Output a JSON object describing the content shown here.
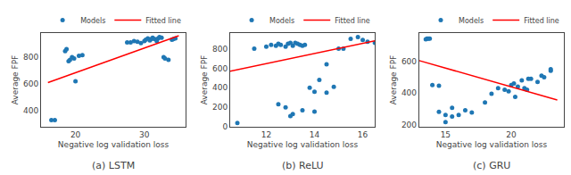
{
  "chart_data": [
    {
      "type": "scatter",
      "title": "(a) LSTM",
      "xlabel": "Negative log validation loss",
      "ylabel": "Average FPF",
      "series": [
        {
          "name": "Models",
          "type": "scatter",
          "color": "#1f77b4",
          "x": [
            16.5,
            17.0,
            18.5,
            18.7,
            19.0,
            19.2,
            19.5,
            19.8,
            20.0,
            20.5,
            21.0,
            27.5,
            28.0,
            28.5,
            29.0,
            29.5,
            30.0,
            30.2,
            30.5,
            30.8,
            31.0,
            31.2,
            31.5,
            31.8,
            32.0,
            32.2,
            32.5,
            32.8,
            33.0,
            33.5,
            34.0,
            34.2,
            34.5
          ],
          "values": [
            330,
            330,
            845,
            860,
            770,
            780,
            800,
            790,
            620,
            810,
            815,
            910,
            910,
            920,
            915,
            905,
            920,
            930,
            940,
            925,
            935,
            945,
            935,
            920,
            940,
            950,
            945,
            800,
            790,
            780,
            930,
            935,
            940
          ]
        },
        {
          "name": "Fitted line",
          "type": "line",
          "color": "red",
          "x": [
            16.0,
            35.0
          ],
          "values": [
            610,
            960
          ]
        }
      ],
      "xlim": [
        15,
        36
      ],
      "ylim": [
        280,
        980
      ],
      "xticks": [
        20,
        30
      ],
      "yticks": [
        400,
        600,
        800
      ],
      "grid": false,
      "legend": "top"
    },
    {
      "type": "scatter",
      "title": "(b) ReLU",
      "xlabel": "Negative log validation loss",
      "ylabel": "Average FPF",
      "series": [
        {
          "name": "Models",
          "type": "scatter",
          "color": "#1f77b4",
          "x": [
            10.8,
            11.5,
            12.0,
            12.2,
            12.4,
            12.5,
            12.6,
            12.8,
            12.9,
            13.0,
            13.1,
            13.2,
            13.3,
            13.4,
            13.5,
            13.6,
            13.8,
            14.0,
            14.2,
            14.5,
            14.8,
            15.0,
            15.2,
            15.5,
            15.8,
            16.0,
            16.2,
            16.5,
            13.0,
            13.1,
            12.5,
            12.8,
            13.5,
            14.0,
            14.5
          ],
          "values": [
            40,
            800,
            820,
            840,
            830,
            850,
            840,
            820,
            850,
            860,
            830,
            860,
            850,
            840,
            830,
            840,
            400,
            360,
            480,
            640,
            410,
            800,
            800,
            900,
            920,
            890,
            870,
            860,
            110,
            130,
            230,
            200,
            170,
            155,
            350
          ]
        },
        {
          "name": "Fitted line",
          "type": "line",
          "color": "red",
          "x": [
            10.5,
            16.5
          ],
          "values": [
            570,
            880
          ]
        }
      ],
      "xlim": [
        10.5,
        16.5
      ],
      "ylim": [
        0,
        960
      ],
      "xticks": [
        12,
        14,
        16
      ],
      "yticks": [
        0,
        200,
        400,
        600,
        800
      ],
      "grid": false,
      "legend": "top"
    },
    {
      "type": "scatter",
      "title": "(c) GRU",
      "xlabel": "Negative log validation loss",
      "ylabel": "Average FPF",
      "series": [
        {
          "name": "Models",
          "type": "scatter",
          "color": "#1f77b4",
          "x": [
            13.5,
            13.6,
            13.7,
            13.8,
            14.0,
            14.5,
            15.0,
            15.5,
            16.0,
            17.0,
            18.0,
            19.0,
            19.5,
            20.0,
            20.2,
            20.5,
            20.8,
            21.0,
            21.2,
            21.5,
            22.0,
            22.5,
            23.0,
            14.5,
            15.0,
            15.5,
            16.5,
            18.5,
            19.8,
            20.3,
            21.3,
            22.3,
            23.0
          ],
          "values": [
            740,
            745,
            745,
            745,
            450,
            280,
            215,
            250,
            260,
            275,
            340,
            430,
            420,
            450,
            460,
            440,
            480,
            430,
            420,
            490,
            470,
            500,
            550,
            445,
            260,
            305,
            290,
            395,
            410,
            375,
            490,
            510,
            540
          ]
        },
        {
          "name": "Fitted line",
          "type": "line",
          "color": "red",
          "x": [
            13.0,
            23.5
          ],
          "values": [
            605,
            355
          ]
        }
      ],
      "xlim": [
        13.0,
        24.0
      ],
      "ylim": [
        185,
        780
      ],
      "xticks": [
        15,
        20
      ],
      "yticks": [
        200,
        400,
        600
      ],
      "grid": false,
      "legend": "top"
    }
  ]
}
